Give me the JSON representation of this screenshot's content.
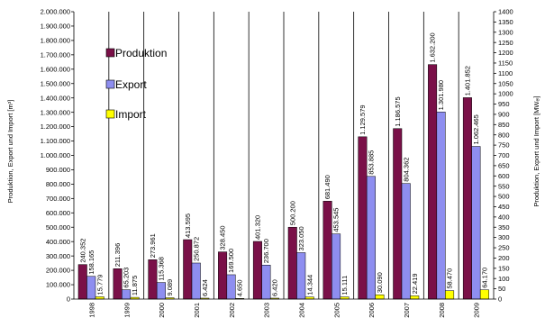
{
  "chart_data": {
    "type": "bar",
    "categories": [
      "1998",
      "1999",
      "2000",
      "2001",
      "2002",
      "2003",
      "2004",
      "2005",
      "2006",
      "2007",
      "2008",
      "2009"
    ],
    "series": [
      {
        "name": "Produktion",
        "color": "#7a1048",
        "values": [
          240352,
          211396,
          273961,
          413595,
          328450,
          401320,
          500200,
          681490,
          1129579,
          1186575,
          1632200,
          1401852
        ],
        "labels": [
          "240.352",
          "211.396",
          "273.961",
          "413.595",
          "328.450",
          "401.320",
          "500.200",
          "681.490",
          "1.129.579",
          "1.186.575",
          "1.632.200",
          "1.401.852"
        ]
      },
      {
        "name": "Export",
        "color": "#8e8ef0",
        "values": [
          158165,
          65203,
          115368,
          250872,
          169500,
          236700,
          323050,
          453545,
          853885,
          804362,
          1301980,
          1062465
        ],
        "labels": [
          "158.165",
          "65.203",
          "115.368",
          "250.872",
          "169.500",
          "236.700",
          "323.050",
          "453.545",
          "853.885",
          "804.362",
          "1.301.980",
          "1.062.465"
        ]
      },
      {
        "name": "Import",
        "color": "#ffff00",
        "values": [
          15779,
          11875,
          9089,
          6424,
          4650,
          6420,
          14344,
          15111,
          30090,
          22419,
          58470,
          64170
        ],
        "labels": [
          "15.779",
          "11.875",
          "9.089",
          "6.424",
          "4.650",
          "6.420",
          "14.344",
          "15.111",
          "30.090",
          "22.419",
          "58.470",
          "64.170"
        ]
      }
    ],
    "ylabel": "Produktion, Export und Import [m³]",
    "ylabel_right": "Produktion, Export und Import [MWₑₗ]",
    "ylim": [
      0,
      2000000
    ],
    "yticks": [
      "0",
      "100.000",
      "200.000",
      "300.000",
      "400.000",
      "500.000",
      "600.000",
      "700.000",
      "800.000",
      "900.000",
      "1.000.000",
      "1.100.000",
      "1.200.000",
      "1.300.000",
      "1.400.000",
      "1.500.000",
      "1.600.000",
      "1.700.000",
      "1.800.000",
      "1.900.000",
      "2.000.000"
    ],
    "ylim_right": [
      0,
      1400
    ],
    "yticks_right": [
      "0",
      "50",
      "100",
      "150",
      "200",
      "250",
      "300",
      "350",
      "400",
      "450",
      "500",
      "550",
      "600",
      "650",
      "700",
      "750",
      "800",
      "850",
      "900",
      "950",
      "1000",
      "1050",
      "1100",
      "1150",
      "1200",
      "1250",
      "1300",
      "1350",
      "1400"
    ],
    "legend": "top-left, inside plot",
    "grid": false
  }
}
